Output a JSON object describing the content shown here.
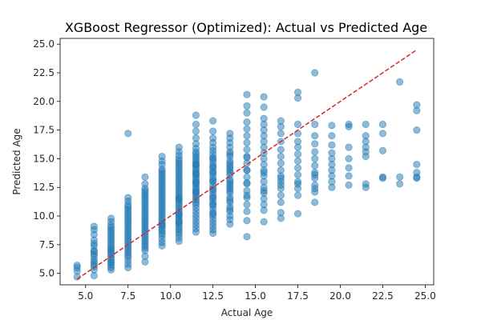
{
  "chart_data": {
    "type": "scatter",
    "title": "XGBoost Regressor (Optimized): Actual vs Predicted Age",
    "xlabel": "Actual Age",
    "ylabel": "Predicted Age",
    "xlim": [
      3.5,
      25.5
    ],
    "ylim": [
      4.0,
      25.5
    ],
    "xticks": [
      "5.0",
      "7.5",
      "10.0",
      "12.5",
      "15.0",
      "17.5",
      "20.0",
      "22.5",
      "25.0"
    ],
    "yticks": [
      "5.0",
      "7.5",
      "10.0",
      "12.5",
      "15.0",
      "17.5",
      "20.0",
      "22.5",
      "25.0"
    ],
    "grid": false,
    "marker_color": "#1f77b4",
    "reference_line": {
      "style": "dashed",
      "color": "#d62728",
      "from": [
        4.5,
        4.5
      ],
      "to": [
        24.5,
        24.5
      ]
    },
    "series": [
      {
        "x": [
          4.5,
          4.5,
          4.5,
          4.5,
          5.5,
          5.5,
          5.5,
          5.5,
          5.5,
          5.5,
          5.5,
          5.5,
          5.5,
          5.5,
          5.5,
          5.5,
          5.5,
          5.5,
          5.5,
          5.5,
          6.5,
          6.5,
          6.5,
          6.5,
          6.5,
          6.5,
          6.5,
          6.5,
          6.5,
          6.5,
          6.5,
          6.5,
          6.5,
          6.5,
          6.5,
          6.5,
          6.5,
          6.5,
          6.5,
          6.5,
          6.5,
          6.5,
          6.5,
          6.5,
          7.5,
          7.5,
          7.5,
          7.5,
          7.5,
          7.5,
          7.5,
          7.5,
          7.5,
          7.5,
          7.5,
          7.5,
          7.5,
          7.5,
          7.5,
          7.5,
          7.5,
          7.5,
          7.5,
          7.5,
          7.5,
          7.5,
          7.5,
          7.5,
          7.5,
          7.5,
          7.5,
          7.5,
          7.5,
          8.5,
          8.5,
          8.5,
          8.5,
          8.5,
          8.5,
          8.5,
          8.5,
          8.5,
          8.5,
          8.5,
          8.5,
          8.5,
          8.5,
          8.5,
          8.5,
          8.5,
          8.5,
          8.5,
          8.5,
          8.5,
          8.5,
          8.5,
          8.5,
          8.5,
          8.5,
          8.5,
          8.5,
          8.5,
          8.5,
          8.5,
          8.5,
          9.5,
          9.5,
          9.5,
          9.5,
          9.5,
          9.5,
          9.5,
          9.5,
          9.5,
          9.5,
          9.5,
          9.5,
          9.5,
          9.5,
          9.5,
          9.5,
          9.5,
          9.5,
          9.5,
          9.5,
          9.5,
          9.5,
          9.5,
          9.5,
          9.5,
          9.5,
          9.5,
          9.5,
          9.5,
          9.5,
          9.5,
          9.5,
          9.5,
          9.5,
          9.5,
          9.5,
          9.5,
          10.5,
          10.5,
          10.5,
          10.5,
          10.5,
          10.5,
          10.5,
          10.5,
          10.5,
          10.5,
          10.5,
          10.5,
          10.5,
          10.5,
          10.5,
          10.5,
          10.5,
          10.5,
          10.5,
          10.5,
          10.5,
          10.5,
          10.5,
          10.5,
          10.5,
          10.5,
          10.5,
          10.5,
          10.5,
          10.5,
          10.5,
          10.5,
          10.5,
          10.5,
          10.5,
          10.5,
          10.5,
          10.5,
          10.5,
          10.5,
          10.5,
          10.5,
          11.5,
          11.5,
          11.5,
          11.5,
          11.5,
          11.5,
          11.5,
          11.5,
          11.5,
          11.5,
          11.5,
          11.5,
          11.5,
          11.5,
          11.5,
          11.5,
          11.5,
          11.5,
          11.5,
          11.5,
          11.5,
          11.5,
          11.5,
          11.5,
          11.5,
          11.5,
          11.5,
          11.5,
          11.5,
          11.5,
          11.5,
          11.5,
          11.5,
          11.5,
          11.5,
          11.5,
          11.5,
          11.5,
          11.5,
          11.5,
          11.5,
          11.5,
          12.5,
          12.5,
          12.5,
          12.5,
          12.5,
          12.5,
          12.5,
          12.5,
          12.5,
          12.5,
          12.5,
          12.5,
          12.5,
          12.5,
          12.5,
          12.5,
          12.5,
          12.5,
          12.5,
          12.5,
          12.5,
          12.5,
          12.5,
          12.5,
          12.5,
          12.5,
          12.5,
          12.5,
          12.5,
          12.5,
          12.5,
          12.5,
          12.5,
          12.5,
          12.5,
          12.5,
          12.5,
          12.5,
          13.5,
          13.5,
          13.5,
          13.5,
          13.5,
          13.5,
          13.5,
          13.5,
          13.5,
          13.5,
          13.5,
          13.5,
          13.5,
          13.5,
          13.5,
          13.5,
          13.5,
          13.5,
          13.5,
          13.5,
          13.5,
          13.5,
          13.5,
          13.5,
          13.5,
          13.5,
          13.5,
          13.5,
          13.5,
          13.5,
          14.5,
          14.5,
          14.5,
          14.5,
          14.5,
          14.5,
          14.5,
          14.5,
          14.5,
          14.5,
          14.5,
          14.5,
          14.5,
          14.5,
          14.5,
          14.5,
          14.5,
          14.5,
          14.5,
          14.5,
          14.5,
          14.5,
          14.5,
          15.5,
          15.5,
          15.5,
          15.5,
          15.5,
          15.5,
          15.5,
          15.5,
          15.5,
          15.5,
          15.5,
          15.5,
          15.5,
          15.5,
          15.5,
          15.5,
          15.5,
          15.5,
          15.5,
          15.5,
          15.5,
          15.5,
          16.5,
          16.5,
          16.5,
          16.5,
          16.5,
          16.5,
          16.5,
          16.5,
          16.5,
          16.5,
          16.5,
          16.5,
          16.5,
          16.5,
          16.5,
          16.5,
          16.5,
          17.5,
          17.5,
          17.5,
          17.5,
          17.5,
          17.5,
          17.5,
          17.5,
          17.5,
          17.5,
          17.5,
          17.5,
          17.5,
          17.5,
          17.5,
          18.5,
          18.5,
          18.5,
          18.5,
          18.5,
          18.5,
          18.5,
          18.5,
          18.5,
          18.5,
          18.5,
          18.5,
          18.5,
          18.5,
          19.5,
          19.5,
          19.5,
          19.5,
          19.5,
          19.5,
          19.5,
          19.5,
          19.5,
          19.5,
          20.5,
          20.5,
          20.5,
          20.5,
          20.5,
          20.5,
          20.5,
          21.5,
          21.5,
          21.5,
          21.5,
          21.5,
          21.5,
          21.5,
          21.5,
          22.5,
          22.5,
          22.5,
          22.5,
          22.5,
          23.5,
          23.5,
          23.5,
          24.5,
          24.5,
          24.5,
          24.5,
          24.5,
          24.5,
          24.5,
          7.5
        ],
        "y": [
          4.7,
          5.2,
          5.5,
          5.7,
          4.8,
          5.3,
          5.6,
          5.8,
          6.0,
          6.2,
          6.5,
          6.7,
          6.9,
          7.0,
          7.4,
          7.6,
          7.9,
          8.4,
          8.8,
          9.1,
          5.3,
          5.5,
          5.7,
          5.9,
          6.0,
          6.2,
          6.4,
          6.6,
          6.8,
          6.9,
          7.1,
          7.2,
          7.4,
          7.6,
          7.8,
          8.0,
          8.2,
          8.4,
          8.6,
          8.8,
          9.0,
          9.2,
          9.5,
          9.8,
          5.5,
          5.8,
          6.1,
          6.4,
          6.6,
          6.8,
          7.0,
          7.2,
          7.4,
          7.6,
          7.8,
          8.0,
          8.2,
          8.4,
          8.6,
          8.8,
          9.0,
          9.2,
          9.4,
          9.6,
          9.8,
          10.0,
          10.2,
          10.4,
          10.6,
          10.8,
          11.0,
          11.3,
          11.6,
          6.0,
          6.5,
          7.0,
          7.2,
          7.4,
          7.6,
          7.8,
          8.0,
          8.2,
          8.4,
          8.6,
          8.8,
          9.0,
          9.2,
          9.4,
          9.6,
          9.8,
          10.0,
          10.2,
          10.4,
          10.6,
          10.8,
          11.0,
          11.2,
          11.4,
          11.6,
          11.8,
          12.0,
          12.2,
          12.4,
          12.8,
          13.4,
          7.4,
          7.7,
          8.0,
          8.3,
          8.5,
          8.7,
          8.9,
          9.1,
          9.3,
          9.5,
          9.7,
          9.9,
          10.1,
          10.3,
          10.5,
          10.7,
          10.9,
          11.1,
          11.3,
          11.5,
          11.7,
          11.9,
          12.1,
          12.3,
          12.5,
          12.7,
          12.9,
          13.1,
          13.3,
          13.5,
          13.7,
          13.9,
          14.1,
          14.5,
          14.8,
          15.2,
          9.2,
          7.8,
          8.1,
          8.4,
          8.6,
          8.8,
          9.0,
          9.2,
          9.4,
          9.6,
          9.8,
          10.0,
          10.2,
          10.4,
          10.6,
          10.8,
          11.0,
          11.2,
          11.4,
          11.6,
          11.8,
          12.0,
          12.2,
          12.4,
          12.6,
          12.8,
          13.0,
          13.2,
          13.4,
          13.6,
          13.8,
          14.0,
          14.2,
          14.4,
          14.6,
          14.8,
          15.0,
          15.3,
          15.6,
          16.0,
          9.5,
          10.1,
          11.5,
          8.6,
          8.9,
          9.2,
          9.5,
          9.8,
          10.1,
          10.4,
          10.7,
          11.0,
          11.2,
          11.4,
          11.6,
          11.8,
          12.0,
          12.2,
          12.4,
          12.6,
          12.8,
          13.0,
          13.2,
          13.4,
          13.6,
          13.8,
          14.0,
          14.2,
          14.4,
          14.6,
          14.8,
          15.0,
          15.2,
          15.4,
          15.6,
          15.9,
          16.3,
          16.8,
          17.4,
          18.0,
          18.8,
          12.1,
          12.9,
          13.7,
          14.5,
          8.5,
          8.8,
          9.1,
          9.4,
          9.7,
          10.0,
          10.3,
          10.6,
          10.9,
          11.2,
          11.5,
          11.8,
          12.1,
          12.4,
          12.7,
          13.0,
          13.3,
          13.6,
          13.9,
          14.2,
          14.5,
          14.8,
          15.1,
          15.4,
          15.7,
          16.0,
          16.4,
          16.8,
          17.4,
          18.3,
          11.0,
          11.6,
          12.3,
          13.1,
          13.8,
          14.3,
          15.0,
          10.2,
          9.3,
          9.7,
          10.0,
          10.4,
          10.8,
          11.2,
          11.6,
          12.0,
          12.4,
          12.8,
          13.2,
          13.6,
          14.0,
          14.4,
          14.8,
          15.2,
          15.6,
          16.0,
          16.4,
          16.8,
          17.2,
          10.6,
          11.4,
          12.2,
          13.0,
          13.8,
          14.6,
          15.4,
          12.6,
          14.2,
          8.2,
          9.6,
          10.4,
          11.0,
          11.6,
          12.2,
          12.8,
          13.4,
          14.0,
          14.6,
          15.2,
          15.8,
          16.4,
          17.0,
          17.6,
          18.2,
          19.0,
          19.6,
          20.6,
          11.8,
          12.9,
          14.0,
          15.1,
          9.5,
          10.5,
          11.0,
          11.5,
          12.0,
          12.5,
          13.0,
          13.5,
          14.0,
          14.5,
          15.0,
          15.5,
          16.0,
          16.5,
          17.0,
          17.5,
          18.0,
          18.5,
          19.5,
          20.4,
          12.2,
          13.8,
          9.8,
          10.3,
          11.2,
          11.8,
          12.4,
          13.0,
          13.5,
          14.0,
          14.6,
          15.2,
          15.8,
          16.5,
          17.2,
          17.8,
          18.3,
          12.7,
          13.3,
          10.2,
          11.8,
          12.4,
          13.0,
          13.6,
          14.2,
          14.8,
          15.4,
          16.0,
          16.5,
          17.2,
          18.0,
          20.3,
          20.8,
          12.8,
          11.2,
          12.1,
          12.7,
          13.3,
          13.8,
          14.4,
          15.0,
          15.6,
          16.3,
          17.0,
          18.0,
          22.5,
          12.4,
          13.6,
          12.5,
          13.0,
          13.5,
          14.0,
          14.5,
          15.0,
          15.5,
          16.2,
          17.0,
          17.9,
          12.7,
          13.5,
          14.2,
          15.0,
          16.0,
          17.8,
          18.0,
          12.5,
          12.8,
          15.2,
          15.6,
          16.0,
          16.5,
          17.0,
          18.0,
          13.4,
          15.7,
          17.2,
          18.0,
          13.3,
          12.8,
          13.4,
          21.7,
          13.3,
          13.8,
          14.5,
          17.5,
          19.2,
          19.7,
          13.4,
          17.2
        ]
      }
    ]
  }
}
